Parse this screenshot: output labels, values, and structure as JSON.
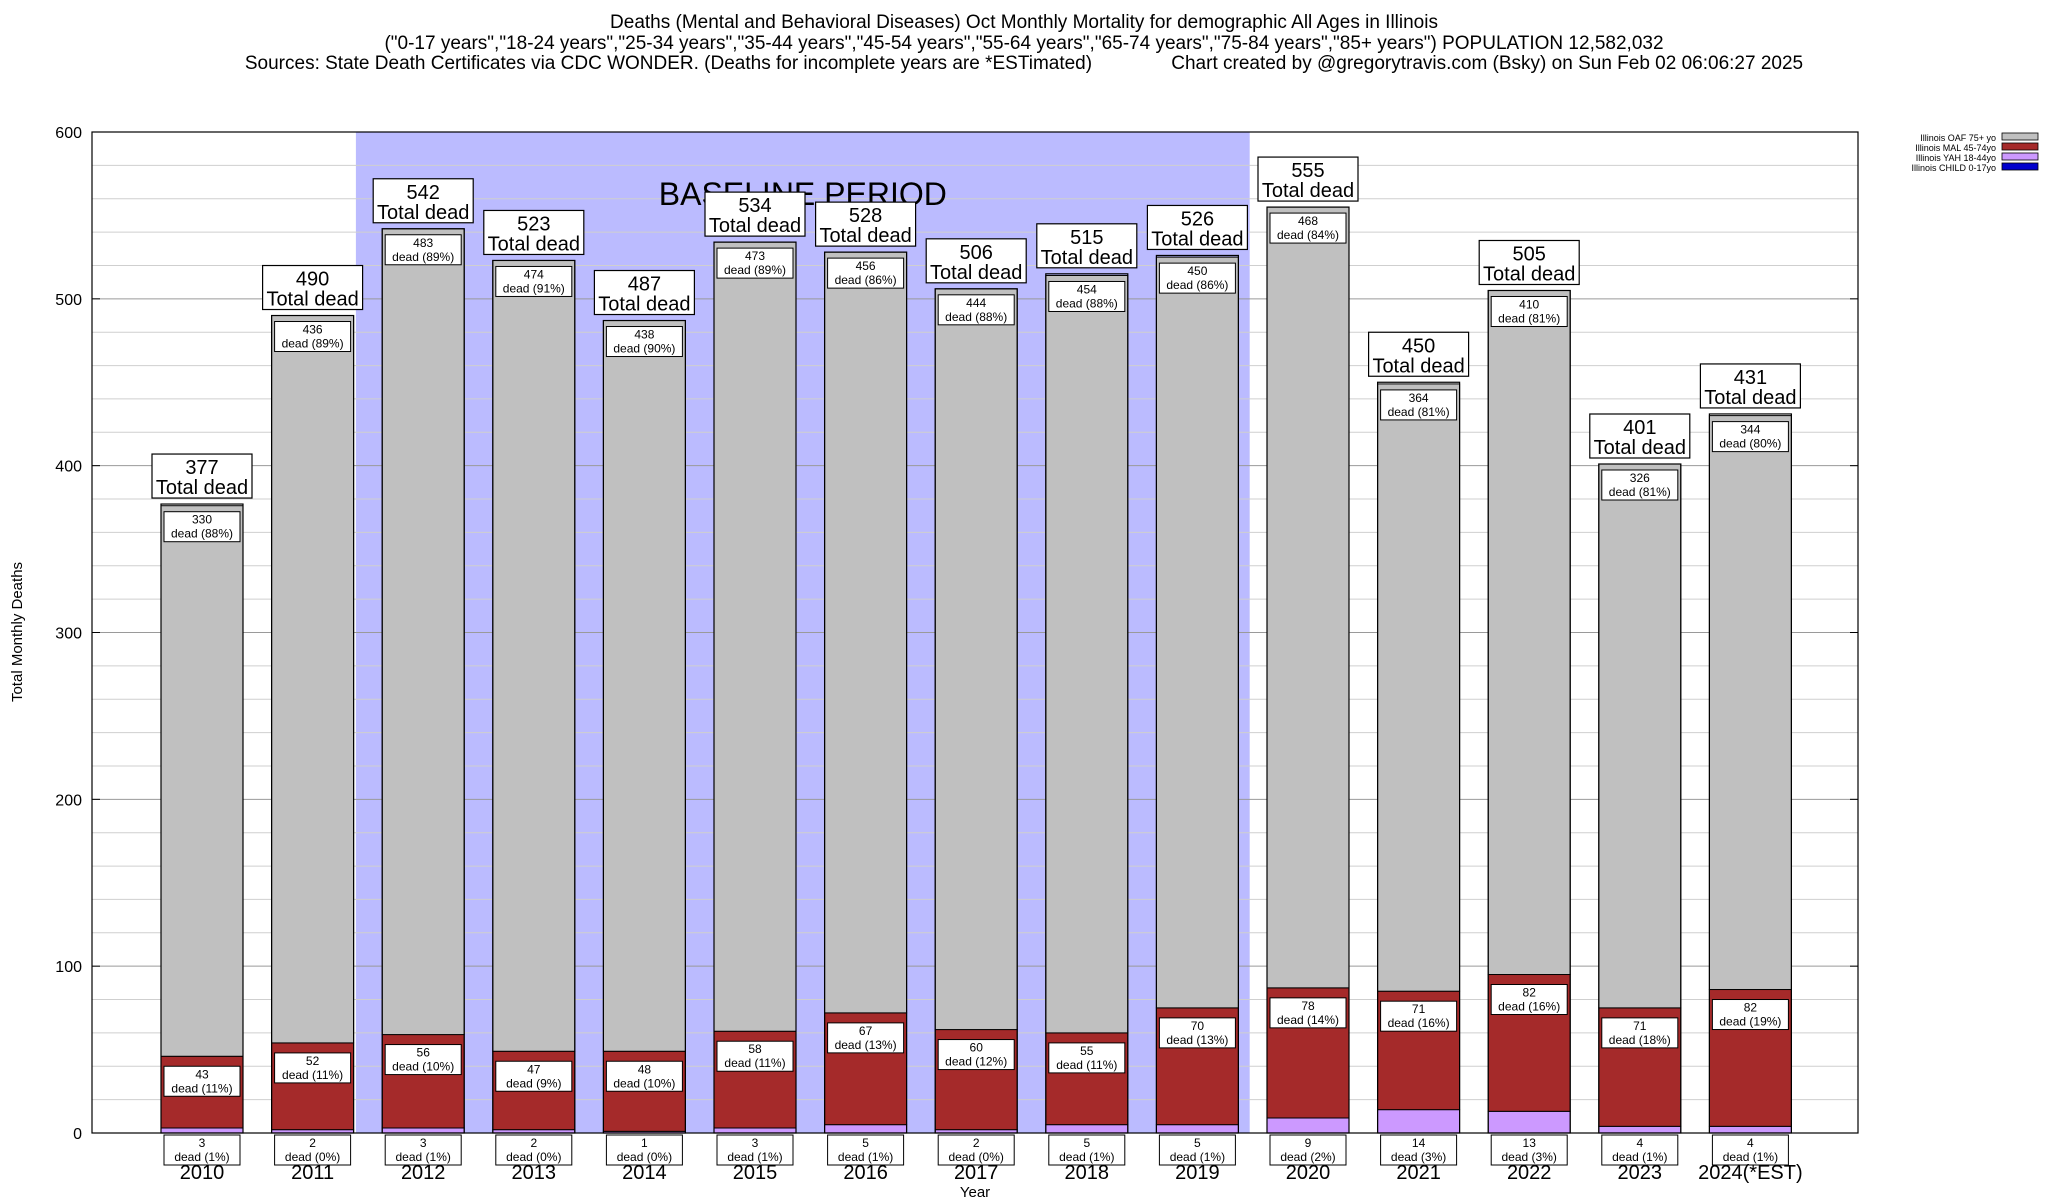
{
  "header": {
    "title": "Deaths (Mental and Behavioral Diseases) Oct Monthly Mortality for demographic All Ages in Illinois",
    "subtitle": "(\"0-17 years\",\"18-24 years\",\"25-34 years\",\"35-44 years\",\"45-54 years\",\"55-64 years\",\"65-74 years\",\"75-84 years\",\"85+ years\") POPULATION 12,582,032",
    "sources": "Sources: State Death Certificates via CDC WONDER. (Deaths for incomplete years are *ESTimated)",
    "credit": "Chart created by @gregorytravis.com (Bsky) on Sun Feb 02 06:06:27 2025"
  },
  "chart_data": {
    "type": "bar",
    "stacked": true,
    "categories": [
      "2010",
      "2011",
      "2012",
      "2013",
      "2014",
      "2015",
      "2016",
      "2017",
      "2018",
      "2019",
      "2020",
      "2021",
      "2022",
      "2023",
      "2024(*EST)"
    ],
    "totals": [
      377,
      490,
      542,
      523,
      487,
      534,
      528,
      506,
      515,
      526,
      555,
      450,
      505,
      401,
      431
    ],
    "total_label_suffix": "Total dead",
    "series": [
      {
        "name": "Illinois CHILD 0-17yo",
        "color": "#0000cc",
        "values": [
          0,
          0,
          0,
          0,
          0,
          0,
          0,
          0,
          0,
          0,
          0,
          0,
          0,
          0,
          0
        ]
      },
      {
        "name": "Illinois YAH 18-44yo",
        "color": "#cc99ff",
        "values": [
          3,
          2,
          3,
          2,
          1,
          3,
          5,
          2,
          5,
          5,
          9,
          14,
          13,
          4,
          4
        ],
        "pct": [
          "1%",
          "0%",
          "1%",
          "0%",
          "0%",
          "1%",
          "1%",
          "0%",
          "1%",
          "1%",
          "2%",
          "3%",
          "3%",
          "1%",
          "1%"
        ]
      },
      {
        "name": "Illinois MAL 45-74yo",
        "color": "#a52a2a",
        "values": [
          43,
          52,
          56,
          47,
          48,
          58,
          67,
          60,
          55,
          70,
          78,
          71,
          82,
          71,
          82
        ],
        "pct": [
          "11%",
          "11%",
          "10%",
          "9%",
          "10%",
          "11%",
          "13%",
          "12%",
          "11%",
          "13%",
          "14%",
          "16%",
          "16%",
          "18%",
          "19%"
        ]
      },
      {
        "name": "Illinois OAF 75+ yo",
        "color": "#c0c0c0",
        "values": [
          330,
          436,
          483,
          474,
          438,
          473,
          456,
          444,
          454,
          450,
          468,
          364,
          410,
          326,
          344
        ],
        "pct": [
          "88%",
          "89%",
          "89%",
          "91%",
          "90%",
          "89%",
          "86%",
          "88%",
          "88%",
          "86%",
          "84%",
          "81%",
          "81%",
          "81%",
          "80%"
        ]
      }
    ],
    "dead_word": "dead",
    "baseline": {
      "label": "BASELINE PERIOD",
      "from": "2012",
      "to": "2019",
      "color": "#bbbbff"
    },
    "xlabel": "Year",
    "ylabel": "Total Monthly Deaths",
    "ylim": [
      0,
      600
    ],
    "yticks": [
      0,
      100,
      200,
      300,
      400,
      500,
      600
    ],
    "grid": true,
    "legend_position": "top-right"
  }
}
